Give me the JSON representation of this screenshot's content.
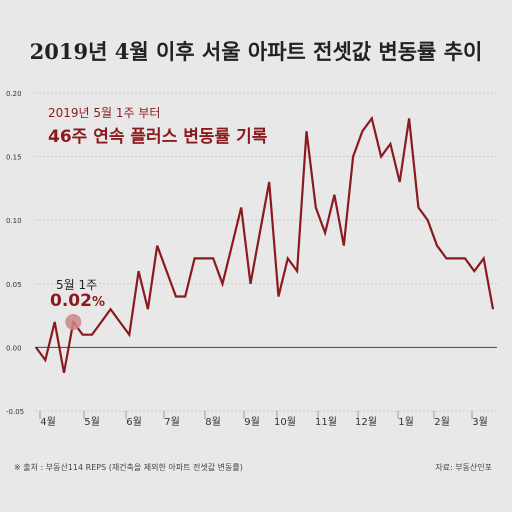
{
  "header": {
    "title": "2019년 4월 이후 서울 아파트 전셋값 변동률 추이"
  },
  "annotation": {
    "subtitle_small": "2019년 5월 1주 부터",
    "subtitle_large": "46주 연속 플러스 변동률 기록"
  },
  "callout": {
    "label": "5월 1주",
    "value": "0.02",
    "unit": "%"
  },
  "footer": {
    "source": "※ 출처 : 부동산114 REPS (재건축을 제외한 아파트 전셋값 변동률)",
    "credit": "자료: 부동산인포"
  },
  "chart_data": {
    "type": "line",
    "y_ticks": [
      "0.20",
      "0.15",
      "0.10",
      "0.05",
      "0.00",
      "-0.05"
    ],
    "ylim": [
      -0.05,
      0.2
    ],
    "month_labels": [
      "4월",
      "5월",
      "6월",
      "7월",
      "8월",
      "9월",
      "10월",
      "11월",
      "12월",
      "1월",
      "2월",
      "3월"
    ],
    "series": [
      {
        "color": "#8b1a1f",
        "values": [
          0.0,
          -0.01,
          0.02,
          -0.02,
          0.02,
          0.01,
          0.01,
          0.02,
          0.03,
          0.02,
          0.01,
          0.06,
          0.03,
          0.08,
          0.06,
          0.04,
          0.04,
          0.07,
          0.07,
          0.07,
          0.05,
          0.08,
          0.11,
          0.05,
          0.09,
          0.13,
          0.04,
          0.07,
          0.06,
          0.17,
          0.11,
          0.09,
          0.12,
          0.08,
          0.15,
          0.17,
          0.18,
          0.15,
          0.16,
          0.13,
          0.18,
          0.11,
          0.1,
          0.08,
          0.07,
          0.07,
          0.07,
          0.06,
          0.07,
          0.03
        ]
      }
    ],
    "highlight": {
      "index": 4,
      "value": 0.02
    },
    "grid": "horizontal"
  }
}
